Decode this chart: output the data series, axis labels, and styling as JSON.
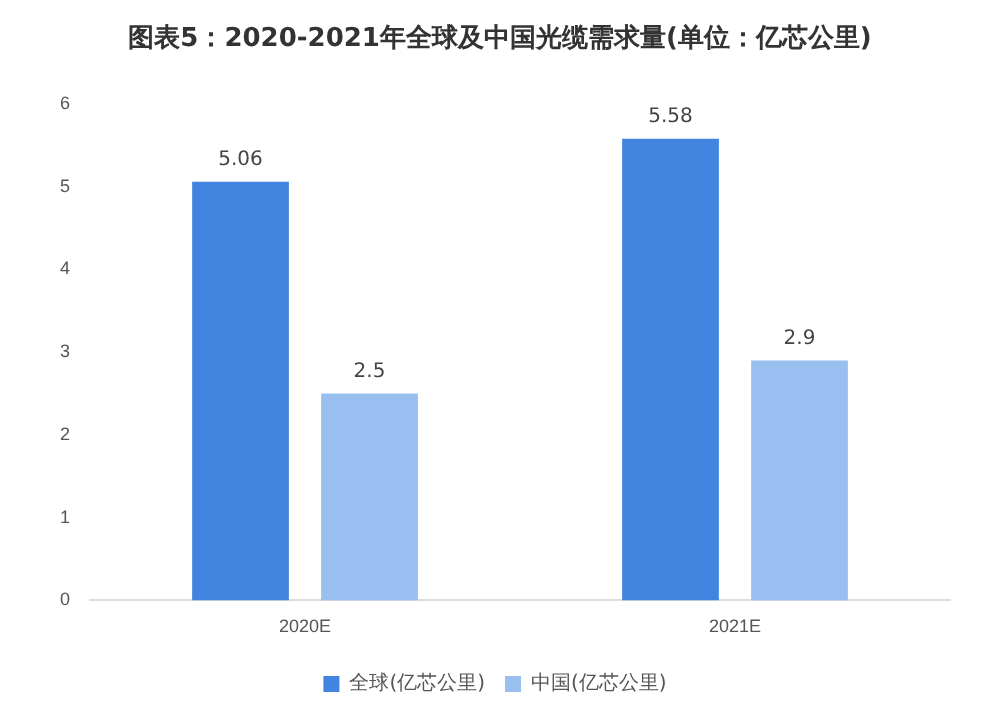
{
  "chart_data": {
    "type": "bar",
    "title": "图表5：2020-2021年全球及中国光缆需求量(单位：亿芯公里)",
    "categories": [
      "2020E",
      "2021E"
    ],
    "series": [
      {
        "name": "全球(亿芯公里)",
        "color": "#4285e0",
        "values": [
          5.06,
          5.58
        ]
      },
      {
        "name": "中国(亿芯公里)",
        "color": "#98bff0",
        "values": [
          2.5,
          2.9
        ]
      }
    ],
    "ylim": [
      0,
      6
    ],
    "yticks": [
      0,
      1,
      2,
      3,
      4,
      5,
      6
    ],
    "grid": false,
    "legend": "bottom",
    "data_labels": true
  }
}
